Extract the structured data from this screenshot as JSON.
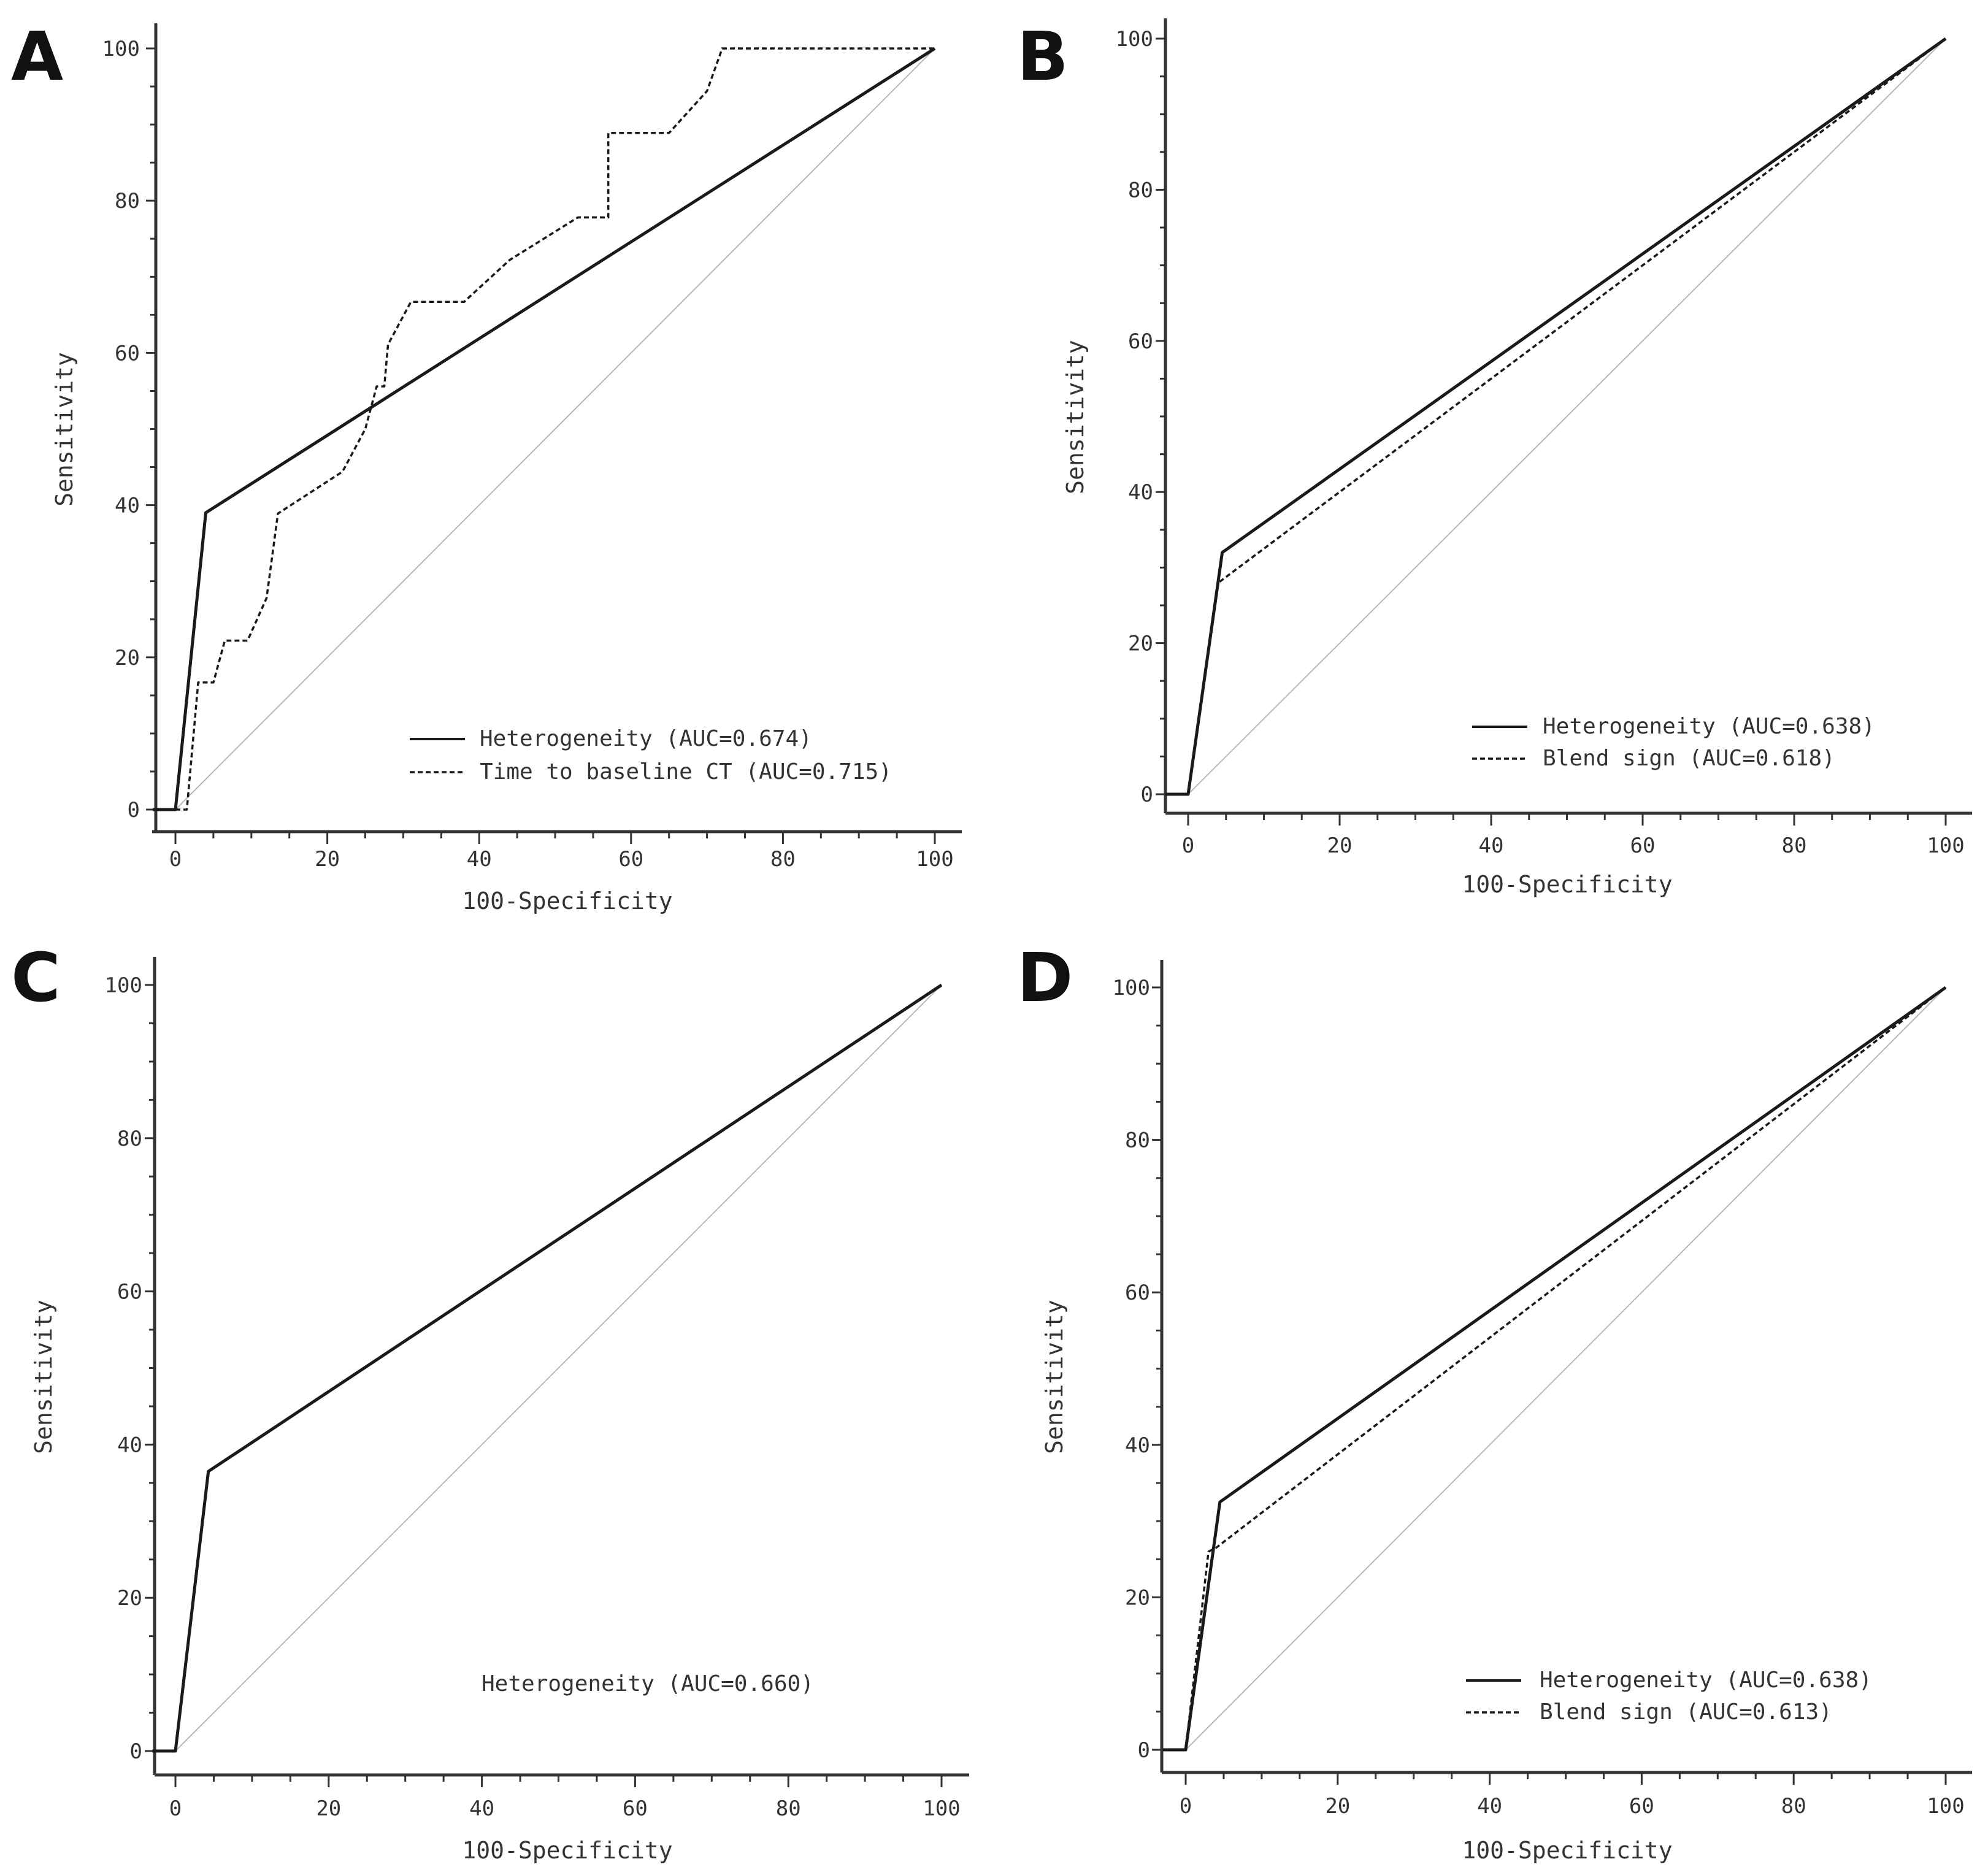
{
  "chart_data": [
    {
      "panel": "A",
      "type": "line",
      "xlabel": "100-Specificity",
      "ylabel": "Sensitivity",
      "xlim": [
        0,
        100
      ],
      "ylim": [
        0,
        100
      ],
      "xticks": [
        "0",
        "20",
        "40",
        "60",
        "80",
        "100"
      ],
      "yticks": [
        "0",
        "20",
        "40",
        "60",
        "80",
        "100"
      ],
      "reference_line": [
        [
          0,
          0
        ],
        [
          100,
          100
        ]
      ],
      "legend_position": "bottom-right",
      "series": [
        {
          "name": "Heterogeneity (AUC=0.674)",
          "style": "solid",
          "points": [
            [
              -3,
              0
            ],
            [
              0,
              0
            ],
            [
              4,
              39
            ],
            [
              100,
              100
            ]
          ]
        },
        {
          "name": "Time to baseline CT (AUC=0.715)",
          "style": "dashed",
          "points": [
            [
              0,
              0
            ],
            [
              1.5,
              0
            ],
            [
              3,
              16.7
            ],
            [
              5,
              16.7
            ],
            [
              6.5,
              22.2
            ],
            [
              9.5,
              22.2
            ],
            [
              12,
              27.8
            ],
            [
              13.5,
              38.9
            ],
            [
              22,
              44.4
            ],
            [
              25,
              50
            ],
            [
              26.5,
              55.6
            ],
            [
              27.5,
              55.6
            ],
            [
              28,
              61.1
            ],
            [
              31,
              66.7
            ],
            [
              38,
              66.7
            ],
            [
              44,
              72.2
            ],
            [
              53,
              77.8
            ],
            [
              57,
              77.8
            ],
            [
              57,
              88.9
            ],
            [
              65,
              88.9
            ],
            [
              70,
              94.4
            ],
            [
              72,
              100
            ],
            [
              100,
              100
            ]
          ]
        }
      ]
    },
    {
      "panel": "B",
      "type": "line",
      "xlabel": "100-Specificity",
      "ylabel": "Sensitivity",
      "xlim": [
        0,
        100
      ],
      "ylim": [
        0,
        100
      ],
      "xticks": [
        "0",
        "20",
        "40",
        "60",
        "80",
        "100"
      ],
      "yticks": [
        "0",
        "20",
        "40",
        "60",
        "80",
        "100"
      ],
      "reference_line": [
        [
          0,
          0
        ],
        [
          100,
          100
        ]
      ],
      "legend_position": "bottom-right",
      "series": [
        {
          "name": "Heterogeneity (AUC=0.638)",
          "style": "solid",
          "points": [
            [
              -3,
              0
            ],
            [
              0,
              0
            ],
            [
              4.5,
              32
            ],
            [
              100,
              100
            ]
          ]
        },
        {
          "name": "Blend sign (AUC=0.618)",
          "style": "dashed",
          "points": [
            [
              0,
              0
            ],
            [
              4,
              28
            ],
            [
              100,
              100
            ]
          ]
        }
      ]
    },
    {
      "panel": "C",
      "type": "line",
      "xlabel": "100-Specificity",
      "ylabel": "Sensitivity",
      "xlim": [
        0,
        100
      ],
      "ylim": [
        0,
        100
      ],
      "xticks": [
        "0",
        "20",
        "40",
        "60",
        "80",
        "100"
      ],
      "yticks": [
        "0",
        "20",
        "40",
        "60",
        "80",
        "100"
      ],
      "reference_line": [
        [
          0,
          0
        ],
        [
          100,
          100
        ]
      ],
      "legend_position": "bottom-right",
      "series": [
        {
          "name": "Heterogeneity (AUC=0.660)",
          "style": "solid",
          "points": [
            [
              -3,
              0
            ],
            [
              0,
              0
            ],
            [
              4.3,
              36.5
            ],
            [
              100,
              100
            ]
          ]
        }
      ]
    },
    {
      "panel": "D",
      "type": "line",
      "xlabel": "100-Specificity",
      "ylabel": "Sensitivity",
      "xlim": [
        0,
        100
      ],
      "ylim": [
        0,
        100
      ],
      "xticks": [
        "0",
        "20",
        "40",
        "60",
        "80",
        "100"
      ],
      "yticks": [
        "0",
        "20",
        "40",
        "60",
        "80",
        "100"
      ],
      "reference_line": [
        [
          0,
          0
        ],
        [
          100,
          100
        ]
      ],
      "legend_position": "bottom-right",
      "series": [
        {
          "name": "Heterogeneity (AUC=0.638)",
          "style": "solid",
          "points": [
            [
              -3,
              0
            ],
            [
              0,
              0
            ],
            [
              4.5,
              32.5
            ],
            [
              100,
              100
            ]
          ]
        },
        {
          "name": "Blend sign (AUC=0.613)",
          "style": "dashed",
          "points": [
            [
              0,
              0
            ],
            [
              3,
              26
            ],
            [
              4,
              26.5
            ],
            [
              100,
              100
            ]
          ]
        }
      ]
    }
  ]
}
